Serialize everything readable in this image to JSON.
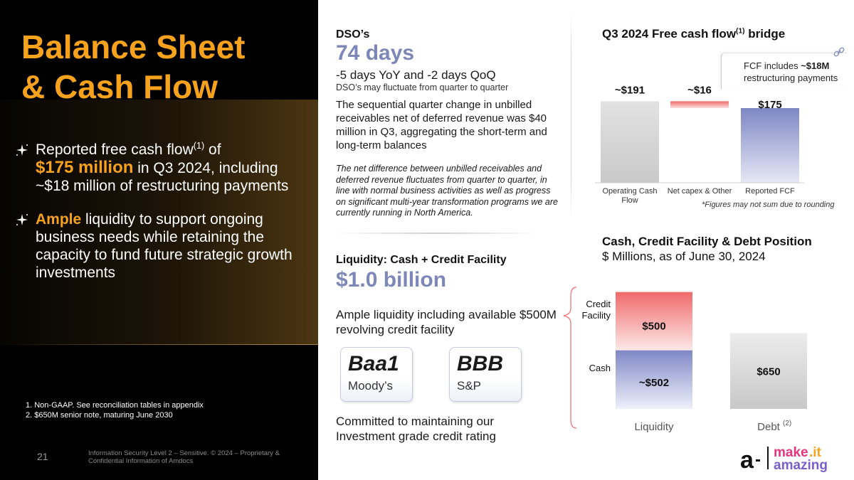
{
  "slide": {
    "title_line1": "Balance Sheet",
    "title_line2": "& Cash Flow",
    "page_number": "21",
    "confidentiality": "Information Security Level 2 – Sensitive. © 2024 – Proprietary & Confidential Information of Amdocs"
  },
  "bullets": [
    {
      "pre": "Reported free cash flow",
      "sup": "(1)",
      "mid": " of",
      "highlight": "$175 million",
      "post": " in Q3 2024, including ~$18 million of restructuring payments"
    },
    {
      "highlight": "Ample",
      "post": " liquidity to support ongoing business needs while retaining the capacity to fund future strategic growth investments"
    }
  ],
  "footnotes": [
    "1.  Non-GAAP. See reconciliation tables in appendix",
    "2.  $650M senior note, maturing June 2030"
  ],
  "dso": {
    "heading": "DSO’s",
    "value": "74 days",
    "change": "-5 days YoY and -2 days QoQ",
    "note": "DSO’s may fluctuate from quarter to quarter",
    "paragraph": "The sequential quarter change in unbilled receivables net of deferred revenue was $40 million in Q3, aggregating the short-term and long-term balances",
    "italic_paragraph": "The net difference between unbilled receivables and deferred revenue fluctuates from quarter to quarter, in line with normal business activities as well as progress on significant multi-year transformation programs we are currently running in North America."
  },
  "liquidity": {
    "heading": "Liquidity: Cash + Credit Facility",
    "value": "$1.0 billion",
    "description": "Ample liquidity including available $500M revolving credit facility",
    "ratings": [
      {
        "rating": "Baa1",
        "agency": "Moody’s"
      },
      {
        "rating": "BBB",
        "agency": "S&P"
      }
    ],
    "commitment": "Committed to maintaining our Investment grade credit rating"
  },
  "fcf_panel": {
    "title_pre": "Q3 2024 Free cash flow",
    "title_sup": "(1)",
    "title_post": " bridge",
    "callout_pre": "FCF includes ",
    "callout_bold": "~$18M",
    "callout_post": " restructuring payments",
    "note": "*Figures may not sum due to rounding"
  },
  "cash_panel": {
    "title": "Cash, Credit Facility & Debt Position",
    "subtitle": "$ Millions, as of June 30, 2024"
  },
  "chart_data": [
    {
      "type": "bar",
      "title": "Q3 2024 Free cash flow(1) bridge",
      "categories": [
        "Operating Cash Flow",
        "Net capex & Other",
        "Reported FCF"
      ],
      "values": [
        191,
        -16,
        175
      ],
      "data_labels": [
        "~$191",
        "~$16",
        "$175"
      ],
      "colors": [
        "#d4d4d4",
        "#ef6a6a",
        "#7d87c4"
      ]
    },
    {
      "type": "bar",
      "title": "Cash, Credit Facility & Debt Position",
      "categories": [
        "Liquidity",
        "Debt"
      ],
      "category_sup": [
        "",
        "(2)"
      ],
      "series": [
        {
          "name": "Cash",
          "values": [
            502,
            650
          ],
          "labels": [
            "~$502",
            "$650"
          ]
        },
        {
          "name": "Credit Facility",
          "values": [
            500,
            0
          ],
          "labels": [
            "$500",
            ""
          ]
        }
      ],
      "colors": {
        "cash": "#8089c6",
        "credit": "#ef6a6a",
        "debt": "#d8d8d8"
      }
    }
  ]
}
